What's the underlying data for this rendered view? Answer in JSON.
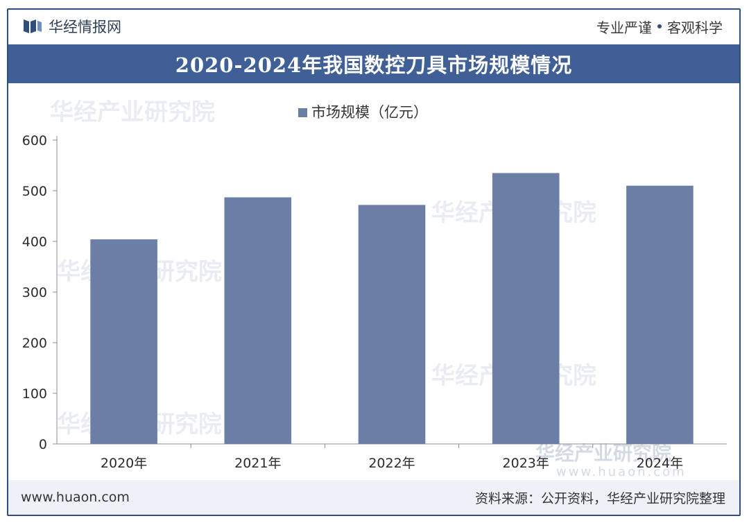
{
  "header": {
    "brand_name": "华经情报网",
    "slogan_left": "专业严谨",
    "slogan_right": "客观科学"
  },
  "watermarks": {
    "org": "华经产业研究院",
    "site": "www.huaon.com"
  },
  "footer": {
    "website": "www.huaon.com",
    "source": "资料来源：公开资料，华经产业研究院整理"
  },
  "colors": {
    "bar": "#6b7fa6",
    "title_bg": "#3f5f96",
    "frame": "#2f4e7a",
    "footer_bg": "#eef2f8"
  },
  "chart_data": {
    "type": "bar",
    "title": "2020-2024年我国数控刀具市场规模情况",
    "categories": [
      "2020年",
      "2021年",
      "2022年",
      "2023年",
      "2024年"
    ],
    "series": [
      {
        "name": "市场规模（亿元）",
        "values": [
          404,
          487,
          472,
          535,
          510
        ]
      }
    ],
    "ylim": [
      0,
      600
    ],
    "yticks": [
      0,
      100,
      200,
      300,
      400,
      500,
      600
    ],
    "xlabel": "",
    "ylabel": "",
    "legend": "top-center",
    "grid": false
  }
}
